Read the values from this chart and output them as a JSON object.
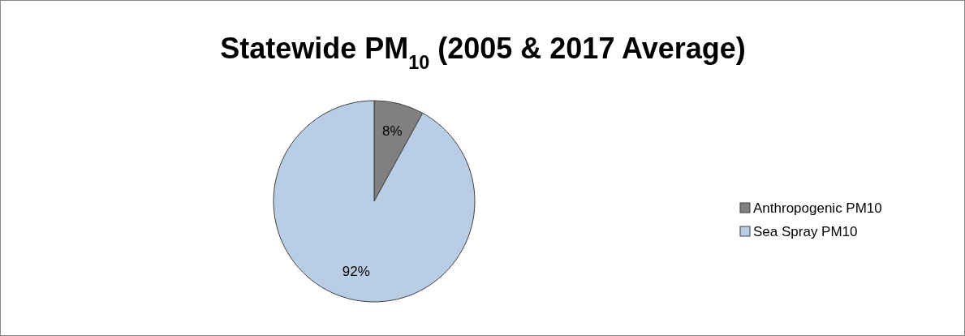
{
  "chart_data": {
    "type": "pie",
    "title": "Statewide PM$_{10}$ (2005 & 2017 Average)",
    "categories": [
      "Anthropogenic PM10",
      "Sea Spray PM10"
    ],
    "values": [
      8,
      92
    ],
    "colors": [
      "#808080",
      "#b9cde5"
    ],
    "value_labels": [
      "8%",
      "92%"
    ],
    "legend": "right"
  }
}
